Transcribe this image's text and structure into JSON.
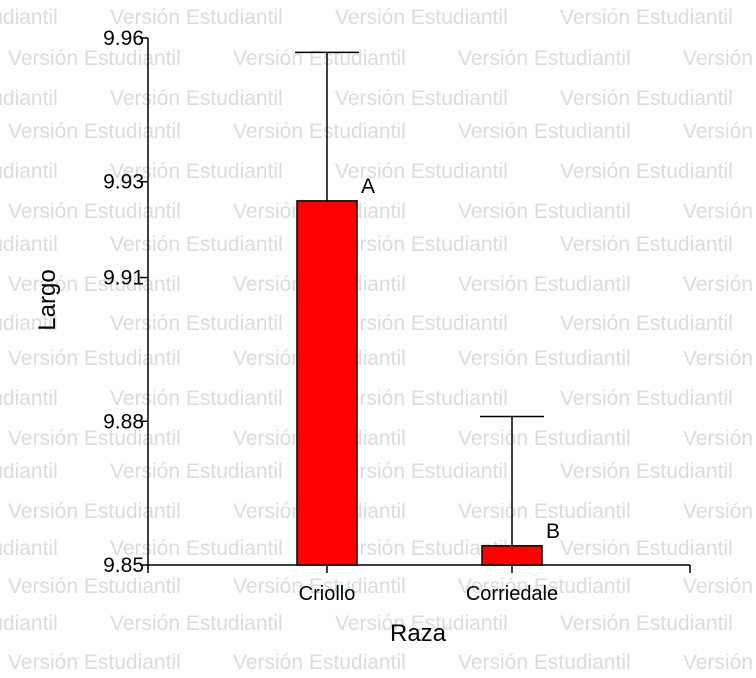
{
  "watermark": {
    "text": "Versión Estudiantil"
  },
  "chart_data": {
    "type": "bar",
    "title": "",
    "xlabel": "Raza",
    "ylabel": "Largo",
    "ylim": [
      9.85,
      9.96
    ],
    "yticks": [
      9.85,
      9.88,
      9.91,
      9.93,
      9.96
    ],
    "categories": [
      "Criollo",
      "Corriedale"
    ],
    "values": [
      9.926,
      9.854
    ],
    "error_upper": [
      9.957,
      9.881
    ],
    "annotations": [
      "A",
      "B"
    ],
    "bar_color": "#ff0000",
    "grid": false
  }
}
